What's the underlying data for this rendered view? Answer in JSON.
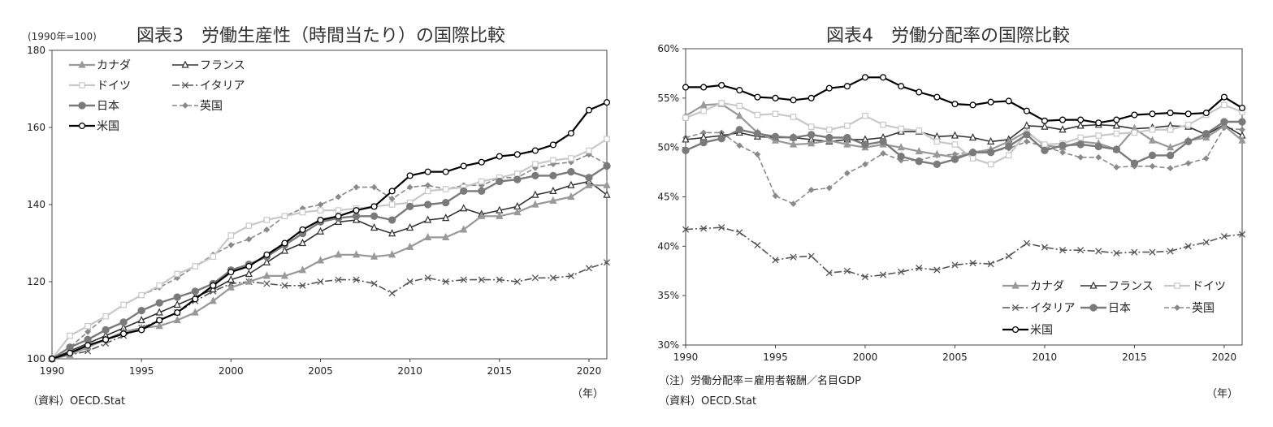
{
  "chart_data": [
    {
      "type": "line",
      "title": "図表3　労働生産性（時間当たり）の国際比較",
      "unit_label": "(1990年=100)",
      "x_unit_label": "（年）",
      "source": "（資料）OECD.Stat",
      "ylim": [
        100,
        180
      ],
      "yticks": [
        100,
        120,
        140,
        160,
        180
      ],
      "xlim": [
        1990,
        2021
      ],
      "xticks": [
        1990,
        1995,
        2000,
        2005,
        2010,
        2015,
        2020
      ],
      "grid": false,
      "legend_position": "top-left",
      "x": [
        1990,
        1991,
        1992,
        1993,
        1994,
        1995,
        1996,
        1997,
        1998,
        1999,
        2000,
        2001,
        2002,
        2003,
        2004,
        2005,
        2006,
        2007,
        2008,
        2009,
        2010,
        2011,
        2012,
        2013,
        2014,
        2015,
        2016,
        2017,
        2018,
        2019,
        2020,
        2021
      ],
      "series": [
        {
          "name": "カナダ",
          "color": "#999999",
          "marker": "triangle",
          "dash": "none",
          "values": [
            100,
            101,
            103,
            105,
            107,
            108,
            108.5,
            110,
            112,
            115,
            118.5,
            120,
            121.5,
            121.5,
            123,
            125.5,
            127,
            127,
            126.5,
            127,
            129,
            131.5,
            131.5,
            133.5,
            137,
            137,
            138,
            140,
            141,
            142,
            145,
            145
          ]
        },
        {
          "name": "フランス",
          "color": "#333333",
          "marker": "triangle-open",
          "dash": "none",
          "values": [
            100,
            102,
            104,
            106,
            108,
            110,
            112,
            114,
            116,
            118,
            120.5,
            122,
            125,
            128,
            130,
            133,
            135.5,
            136,
            134,
            132.5,
            134,
            136,
            136.5,
            139,
            137.5,
            138.5,
            139.5,
            142.5,
            143.5,
            145,
            146,
            142.5
          ]
        },
        {
          "name": "ドイツ",
          "color": "#c8c8c8",
          "marker": "square-open",
          "dash": "none",
          "values": [
            100,
            106,
            108.5,
            111,
            114,
            116.5,
            119,
            122,
            124,
            126.5,
            132,
            134.5,
            136,
            137,
            138,
            138.5,
            138.5,
            139,
            139.5,
            140,
            140.5,
            143.5,
            144,
            144.5,
            146,
            147,
            148,
            150.5,
            151.5,
            152,
            154,
            157
          ]
        },
        {
          "name": "イタリア",
          "color": "#555555",
          "marker": "x",
          "dash": "dashdot",
          "values": [
            100,
            101,
            102,
            104,
            106,
            108,
            110,
            112,
            115,
            117.5,
            119.5,
            120,
            119.5,
            119,
            119,
            120,
            120.5,
            120.5,
            119.5,
            117,
            120,
            121,
            120,
            120.5,
            120.5,
            120.5,
            120,
            121,
            121,
            121.5,
            123.5,
            125
          ]
        },
        {
          "name": "日本",
          "color": "#7a7a7a",
          "marker": "circle",
          "dash": "none",
          "values": [
            100,
            103,
            105,
            107.5,
            109.5,
            112.5,
            114.5,
            116,
            117.5,
            119.5,
            123,
            124.5,
            126.5,
            129.5,
            132.5,
            135.5,
            136.5,
            137,
            137,
            136,
            139.5,
            140,
            140.5,
            143.5,
            143.5,
            146,
            146.5,
            147.5,
            147.5,
            148.5,
            147,
            150
          ]
        },
        {
          "name": "英国",
          "color": "#8a8a8a",
          "marker": "diamond",
          "dash": "dashed",
          "values": [
            100,
            103,
            107,
            111,
            114,
            116.5,
            118.5,
            121,
            124,
            127,
            129.5,
            131,
            133.5,
            137,
            139,
            140,
            142,
            144.5,
            144.5,
            141.5,
            144.5,
            145,
            144,
            145,
            145,
            147,
            147,
            149.5,
            150.5,
            151,
            153,
            150.5
          ]
        },
        {
          "name": "米国",
          "color": "#000000",
          "marker": "circle-open",
          "dash": "none",
          "values": [
            100,
            101.5,
            103.5,
            105,
            106.5,
            107.5,
            110,
            112,
            115.5,
            119,
            122.5,
            124,
            127,
            130,
            133.5,
            136,
            137,
            138.5,
            139.5,
            143.5,
            147.5,
            148.5,
            148.5,
            150,
            151,
            152.5,
            153,
            154,
            155.5,
            158.5,
            164.5,
            166.5
          ]
        }
      ]
    },
    {
      "type": "line",
      "title": "図表4　労働分配率の国際比較",
      "x_unit_label": "（年）",
      "note": "（注）労働分配率＝雇用者報酬／名目GDP",
      "source": "（資料）OECD.Stat",
      "ylim": [
        30,
        60
      ],
      "yticks": [
        30,
        35,
        40,
        45,
        50,
        55,
        60
      ],
      "ytick_labels": [
        "30%",
        "35%",
        "40%",
        "45%",
        "50%",
        "55%",
        "60%"
      ],
      "xlim": [
        1990,
        2021
      ],
      "xticks": [
        1990,
        1995,
        2000,
        2005,
        2010,
        2015,
        2020
      ],
      "grid": false,
      "legend_position": "bottom-right",
      "x": [
        1990,
        1991,
        1992,
        1993,
        1994,
        1995,
        1996,
        1997,
        1998,
        1999,
        2000,
        2001,
        2002,
        2003,
        2004,
        2005,
        2006,
        2007,
        2008,
        2009,
        2010,
        2011,
        2012,
        2013,
        2014,
        2015,
        2016,
        2017,
        2018,
        2019,
        2020,
        2021
      ],
      "series": [
        {
          "name": "カナダ",
          "color": "#999999",
          "marker": "triangle",
          "dash": "none",
          "values": [
            53.2,
            54.3,
            54.4,
            53.2,
            51.5,
            50.7,
            50.3,
            50.4,
            50.7,
            50.3,
            50.0,
            50.3,
            50.0,
            49.6,
            49.3,
            49.0,
            49.5,
            49.8,
            50.6,
            51.6,
            50.2,
            50.0,
            50.6,
            50.4,
            49.8,
            51.9,
            50.7,
            50.0,
            50.7,
            51.0,
            52.2,
            50.7
          ]
        },
        {
          "name": "フランス",
          "color": "#333333",
          "marker": "triangle-open",
          "dash": "none",
          "values": [
            50.8,
            51.0,
            51.2,
            51.5,
            51.1,
            51.0,
            51.0,
            50.8,
            50.6,
            50.8,
            50.8,
            51.0,
            51.6,
            51.6,
            51.1,
            51.2,
            51.0,
            50.6,
            50.8,
            52.2,
            52.1,
            51.8,
            52.2,
            52.3,
            52.2,
            51.9,
            52.0,
            52.2,
            52.1,
            51.3,
            52.3,
            51.2
          ]
        },
        {
          "name": "ドイツ",
          "color": "#c8c8c8",
          "marker": "square-open",
          "dash": "none",
          "values": [
            53.0,
            53.7,
            54.5,
            54.2,
            53.3,
            53.4,
            53.1,
            52.1,
            51.8,
            52.2,
            53.2,
            52.3,
            51.9,
            51.7,
            50.6,
            50.3,
            48.9,
            48.3,
            49.2,
            51.5,
            50.3,
            50.4,
            51.0,
            51.2,
            51.4,
            51.5,
            51.8,
            51.8,
            52.3,
            53.3,
            54.3,
            53.6
          ]
        },
        {
          "name": "イタリア",
          "color": "#555555",
          "marker": "x",
          "dash": "dashdot",
          "values": [
            41.7,
            41.8,
            41.9,
            41.4,
            40.1,
            38.6,
            38.9,
            39.0,
            37.3,
            37.5,
            36.9,
            37.1,
            37.4,
            37.8,
            37.6,
            38.1,
            38.3,
            38.2,
            39.0,
            40.3,
            39.9,
            39.6,
            39.6,
            39.5,
            39.3,
            39.4,
            39.4,
            39.5,
            40.0,
            40.4,
            41.0,
            41.2
          ]
        },
        {
          "name": "日本",
          "color": "#7a7a7a",
          "marker": "circle",
          "dash": "none",
          "values": [
            49.7,
            50.5,
            50.9,
            51.8,
            51.4,
            51.1,
            51.0,
            51.3,
            51.0,
            51.0,
            50.3,
            50.6,
            49.1,
            48.6,
            48.3,
            48.8,
            49.5,
            49.5,
            50.1,
            51.3,
            49.7,
            50.2,
            50.3,
            50.1,
            49.8,
            48.4,
            49.2,
            49.2,
            50.6,
            51.4,
            52.6,
            52.6
          ]
        },
        {
          "name": "英国",
          "color": "#8a8a8a",
          "marker": "diamond",
          "dash": "dashed",
          "values": [
            51.0,
            51.5,
            51.5,
            50.2,
            49.3,
            45.1,
            44.3,
            45.7,
            45.9,
            47.4,
            48.3,
            49.4,
            48.7,
            48.7,
            49.2,
            49.3,
            49.6,
            49.6,
            49.9,
            50.6,
            50.1,
            49.5,
            49.0,
            49.0,
            48.0,
            48.1,
            48.1,
            47.9,
            48.4,
            48.9,
            52.0,
            51.8
          ]
        },
        {
          "name": "米国",
          "color": "#000000",
          "marker": "circle-open",
          "dash": "none",
          "values": [
            56.1,
            56.1,
            56.3,
            55.8,
            55.1,
            55.0,
            54.8,
            55.0,
            56.0,
            56.2,
            57.1,
            57.1,
            56.2,
            55.6,
            55.1,
            54.4,
            54.3,
            54.6,
            54.7,
            53.7,
            52.7,
            52.8,
            52.8,
            52.5,
            52.8,
            53.3,
            53.4,
            53.5,
            53.4,
            53.5,
            55.1,
            54.0
          ]
        }
      ]
    }
  ]
}
